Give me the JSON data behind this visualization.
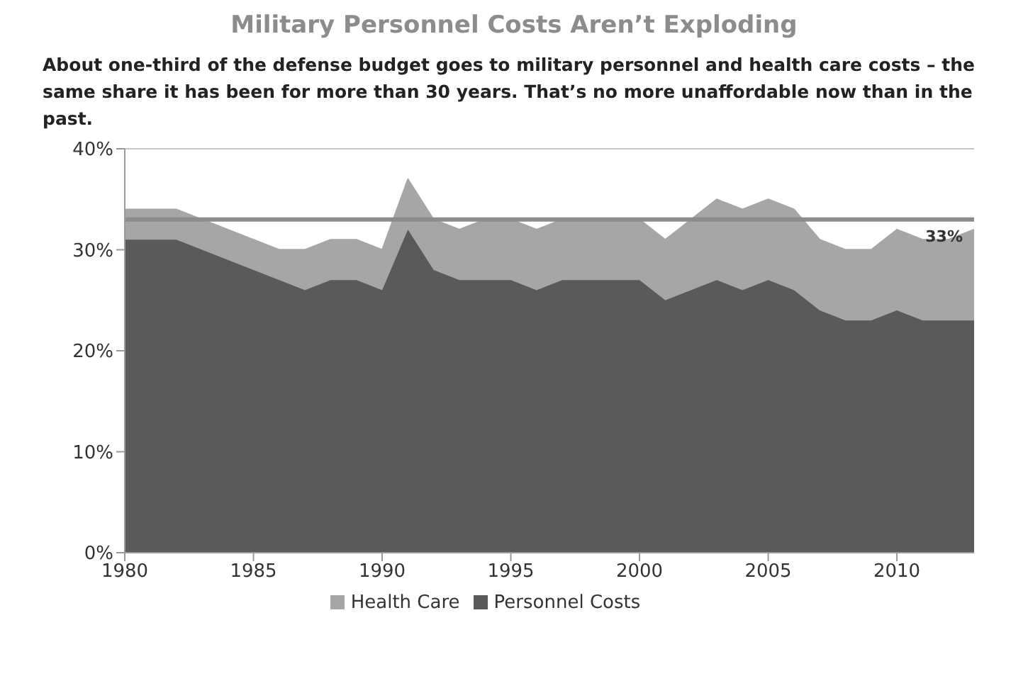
{
  "chart_data": {
    "type": "area",
    "stacked": true,
    "title": "Military Personnel Costs Aren’t Exploding",
    "subtitle": "About one-third of the defense budget goes to military personnel and health care costs – the same share it has been for more than 30 years.  That’s no more unaffordable now than in the past.",
    "x": [
      1980,
      1981,
      1982,
      1983,
      1984,
      1985,
      1986,
      1987,
      1988,
      1989,
      1990,
      1991,
      1992,
      1993,
      1994,
      1995,
      1996,
      1997,
      1998,
      1999,
      2000,
      2001,
      2002,
      2003,
      2004,
      2005,
      2006,
      2007,
      2008,
      2009,
      2010,
      2011,
      2012,
      2013
    ],
    "series": [
      {
        "name": "Personnel Costs",
        "color": "#5a5a5a",
        "values": [
          31,
          31,
          31,
          30,
          29,
          28,
          27,
          26,
          27,
          27,
          26,
          32,
          28,
          27,
          27,
          27,
          26,
          27,
          27,
          27,
          27,
          25,
          26,
          27,
          26,
          27,
          26,
          24,
          23,
          23,
          24,
          23,
          23,
          23
        ]
      },
      {
        "name": "Health Care",
        "color": "#a6a6a6",
        "values": [
          3,
          3,
          3,
          3,
          3,
          3,
          3,
          4,
          4,
          4,
          4,
          5,
          5,
          5,
          6,
          6,
          6,
          6,
          6,
          6,
          6,
          6,
          7,
          8,
          8,
          8,
          8,
          7,
          7,
          7,
          8,
          8,
          8,
          9
        ]
      }
    ],
    "xlim": [
      1980,
      2013
    ],
    "xticks": [
      1980,
      1985,
      1990,
      1995,
      2000,
      2005,
      2010
    ],
    "ylim": [
      0,
      40
    ],
    "yticks": [
      {
        "value": 0,
        "label": "0%"
      },
      {
        "value": 10,
        "label": "10%"
      },
      {
        "value": 20,
        "label": "20%"
      },
      {
        "value": 30,
        "label": "30%"
      },
      {
        "value": 40,
        "label": "40%"
      }
    ],
    "ref_lines": [
      {
        "axis": "y",
        "value": 33,
        "label": "33%",
        "color": "#8c8c8c"
      }
    ],
    "grid": "y",
    "legend": "bottom"
  }
}
